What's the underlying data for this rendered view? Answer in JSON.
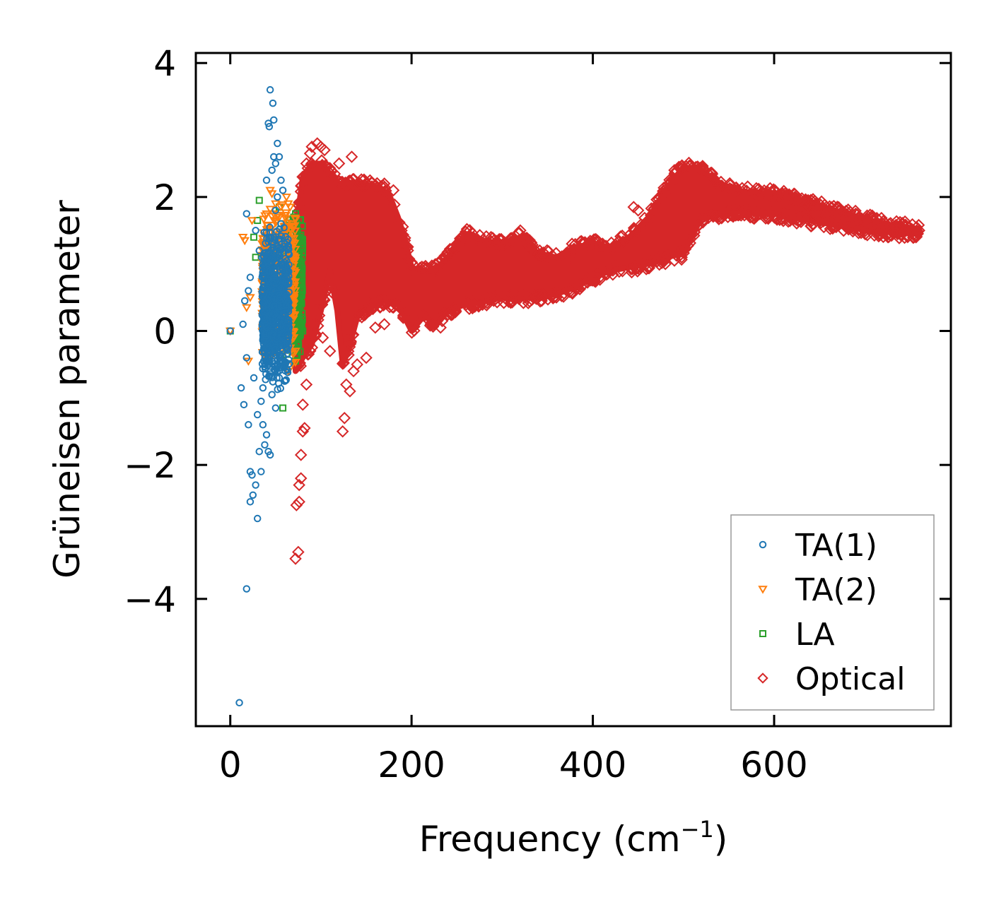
{
  "chart_data": {
    "type": "scatter",
    "title": "",
    "xlabel": "Frequency (cm",
    "xlabel_sup": "−1",
    "xlabel_close": ")",
    "ylabel": "Grüneisen parameter",
    "xlim": [
      -38,
      795
    ],
    "ylim": [
      -5.9,
      4.15
    ],
    "x_ticks": [
      0,
      200,
      400,
      600
    ],
    "x_tick_labels": [
      "0",
      "200",
      "400",
      "600"
    ],
    "y_ticks": [
      -4,
      -2,
      0,
      2,
      4
    ],
    "y_tick_labels": [
      "−4",
      "−2",
      "0",
      "2",
      "4"
    ],
    "grid": false,
    "legend_position": "lower-right",
    "series": [
      {
        "name": "TA(1)",
        "marker": "circle",
        "color": "#1f77b4",
        "points": [
          [
            0,
            0
          ],
          [
            10,
            -5.55
          ],
          [
            12,
            -0.85
          ],
          [
            14,
            0.1
          ],
          [
            15,
            -1.1
          ],
          [
            18,
            1.75
          ],
          [
            18,
            -3.85
          ],
          [
            20,
            -1.4
          ],
          [
            22,
            -2.1
          ],
          [
            22,
            -2.55
          ],
          [
            24,
            -2.15
          ],
          [
            25,
            -2.45
          ],
          [
            28,
            -2.3
          ],
          [
            30,
            -2.8
          ],
          [
            32,
            -1.8
          ],
          [
            34,
            -2.1
          ],
          [
            36,
            -1.4
          ],
          [
            38,
            -1.7
          ],
          [
            40,
            -1.55
          ],
          [
            42,
            -1.8
          ],
          [
            44,
            -1.85
          ],
          [
            42,
            3.1
          ],
          [
            43,
            3.05
          ],
          [
            44,
            3.6
          ],
          [
            47,
            3.4
          ],
          [
            48,
            3.15
          ],
          [
            48,
            2.6
          ],
          [
            50,
            2.5
          ],
          [
            52,
            2.8
          ],
          [
            54,
            2.6
          ],
          [
            56,
            2.25
          ],
          [
            58,
            2.1
          ],
          [
            50,
            1.8
          ],
          [
            44,
            1.4
          ],
          [
            40,
            0.9
          ],
          [
            22,
            0.8
          ],
          [
            20,
            0.6
          ],
          [
            16,
            0.45
          ],
          [
            18,
            -0.4
          ],
          [
            26,
            -0.7
          ],
          [
            30,
            -1.25
          ],
          [
            34,
            -1.05
          ],
          [
            36,
            -0.85
          ],
          [
            46,
            -0.95
          ],
          [
            50,
            -1.15
          ],
          [
            54,
            -0.7
          ],
          [
            60,
            -0.75
          ],
          [
            28,
            1.5
          ],
          [
            32,
            1.2
          ],
          [
            36,
            1.0
          ],
          [
            40,
            2.25
          ],
          [
            46,
            2.4
          ],
          [
            52,
            2.0
          ],
          [
            56,
            1.6
          ],
          [
            60,
            1.3
          ],
          [
            62,
            0.8
          ]
        ],
        "cluster": {
          "x_range": [
            35,
            65
          ],
          "y_range": [
            -0.9,
            1.6
          ],
          "count": 700
        }
      },
      {
        "name": "TA(2)",
        "marker": "triangle-down",
        "color": "#ff7f0e",
        "points": [
          [
            0,
            0
          ],
          [
            14,
            1.4
          ],
          [
            16,
            1.35
          ],
          [
            18,
            0.35
          ],
          [
            20,
            -0.45
          ],
          [
            22,
            0.5
          ],
          [
            24,
            1.65
          ],
          [
            40,
            1.75
          ],
          [
            44,
            2.1
          ],
          [
            46,
            2.05
          ],
          [
            48,
            1.75
          ],
          [
            50,
            1.9
          ],
          [
            54,
            1.7
          ],
          [
            58,
            1.45
          ],
          [
            62,
            2.0
          ],
          [
            64,
            1.9
          ],
          [
            66,
            1.85
          ],
          [
            68,
            1.6
          ],
          [
            70,
            -0.1
          ],
          [
            72,
            -0.3
          ],
          [
            64,
            -0.6
          ],
          [
            60,
            0.5
          ],
          [
            56,
            0.2
          ]
        ],
        "cluster": {
          "x_range": [
            35,
            72
          ],
          "y_range": [
            -0.6,
            2.0
          ],
          "count": 500
        }
      },
      {
        "name": "LA",
        "marker": "square",
        "color": "#2ca02c",
        "points": [
          [
            0,
            0
          ],
          [
            26,
            1.4
          ],
          [
            28,
            1.1
          ],
          [
            30,
            1.65
          ],
          [
            32,
            1.95
          ],
          [
            54,
            1.85
          ],
          [
            56,
            1.6
          ],
          [
            58,
            -1.15
          ],
          [
            60,
            1.45
          ],
          [
            64,
            1.5
          ],
          [
            70,
            1.7
          ],
          [
            72,
            1.75
          ],
          [
            74,
            1.5
          ],
          [
            76,
            1.4
          ],
          [
            74,
            0.6
          ],
          [
            76,
            0.0
          ],
          [
            72,
            -0.45
          ],
          [
            70,
            -0.1
          ]
        ],
        "cluster": {
          "x_range": [
            60,
            80
          ],
          "y_range": [
            -0.5,
            1.8
          ],
          "count": 350
        }
      },
      {
        "name": "Optical",
        "marker": "diamond",
        "color": "#d62728",
        "points": [
          [
            72,
            -3.4
          ],
          [
            75,
            -3.3
          ],
          [
            73,
            -2.6
          ],
          [
            76,
            -2.55
          ],
          [
            76,
            -2.3
          ],
          [
            78,
            -2.2
          ],
          [
            78,
            -1.85
          ],
          [
            80,
            -1.5
          ],
          [
            82,
            -1.45
          ],
          [
            80,
            -1.1
          ],
          [
            84,
            -0.8
          ],
          [
            84,
            2.5
          ],
          [
            88,
            2.65
          ],
          [
            90,
            2.75
          ],
          [
            96,
            2.8
          ],
          [
            100,
            2.75
          ],
          [
            104,
            2.7
          ],
          [
            120,
            2.5
          ],
          [
            134,
            2.6
          ],
          [
            150,
            2.2
          ],
          [
            170,
            2.2
          ],
          [
            180,
            2.1
          ],
          [
            124,
            -1.5
          ],
          [
            126,
            -1.3
          ],
          [
            128,
            -0.8
          ],
          [
            132,
            -0.9
          ],
          [
            136,
            -0.6
          ],
          [
            140,
            -0.5
          ],
          [
            150,
            -0.4
          ],
          [
            160,
            0.05
          ],
          [
            170,
            0.1
          ],
          [
            180,
            0.35
          ],
          [
            110,
            -0.3
          ],
          [
            102,
            -0.1
          ],
          [
            232,
            0.05
          ],
          [
            250,
            1.3
          ],
          [
            320,
            1.5
          ],
          [
            375,
            1.1
          ],
          [
            420,
            1.05
          ],
          [
            445,
            1.85
          ],
          [
            450,
            1.8
          ],
          [
            480,
            1.0
          ],
          [
            490,
            1.05
          ],
          [
            498,
            1.1
          ],
          [
            490,
            2.4
          ],
          [
            495,
            2.45
          ],
          [
            500,
            2.45
          ],
          [
            690,
            1.75
          ],
          [
            720,
            1.6
          ],
          [
            740,
            1.55
          ],
          [
            752,
            1.52
          ],
          [
            760,
            1.5
          ]
        ],
        "band_upper": [
          [
            72,
            1.5
          ],
          [
            80,
            2.3
          ],
          [
            90,
            2.5
          ],
          [
            100,
            2.5
          ],
          [
            110,
            2.35
          ],
          [
            120,
            2.2
          ],
          [
            130,
            2.2
          ],
          [
            140,
            2.2
          ],
          [
            160,
            2.15
          ],
          [
            175,
            2.05
          ],
          [
            185,
            1.7
          ],
          [
            192,
            1.4
          ],
          [
            200,
            0.95
          ],
          [
            210,
            0.9
          ],
          [
            225,
            0.9
          ],
          [
            240,
            1.1
          ],
          [
            260,
            1.45
          ],
          [
            280,
            1.35
          ],
          [
            300,
            1.3
          ],
          [
            320,
            1.4
          ],
          [
            340,
            1.15
          ],
          [
            360,
            1.1
          ],
          [
            380,
            1.25
          ],
          [
            400,
            1.3
          ],
          [
            420,
            1.25
          ],
          [
            440,
            1.4
          ],
          [
            460,
            1.65
          ],
          [
            480,
            2.1
          ],
          [
            500,
            2.45
          ],
          [
            520,
            2.4
          ],
          [
            540,
            2.2
          ],
          [
            560,
            2.1
          ],
          [
            580,
            2.05
          ],
          [
            600,
            2.05
          ],
          [
            640,
            1.9
          ],
          [
            680,
            1.75
          ],
          [
            720,
            1.6
          ],
          [
            760,
            1.52
          ]
        ],
        "band_lower": [
          [
            72,
            -0.6
          ],
          [
            80,
            -0.4
          ],
          [
            90,
            -0.2
          ],
          [
            100,
            0.3
          ],
          [
            110,
            0.9
          ],
          [
            118,
            0.3
          ],
          [
            124,
            -0.5
          ],
          [
            130,
            -0.3
          ],
          [
            140,
            0.2
          ],
          [
            155,
            0.4
          ],
          [
            170,
            0.45
          ],
          [
            185,
            0.4
          ],
          [
            200,
            0.0
          ],
          [
            215,
            0.25
          ],
          [
            225,
            0.05
          ],
          [
            240,
            0.3
          ],
          [
            260,
            0.4
          ],
          [
            280,
            0.45
          ],
          [
            300,
            0.5
          ],
          [
            320,
            0.5
          ],
          [
            340,
            0.5
          ],
          [
            360,
            0.55
          ],
          [
            380,
            0.65
          ],
          [
            400,
            0.8
          ],
          [
            420,
            0.9
          ],
          [
            440,
            0.95
          ],
          [
            460,
            1.0
          ],
          [
            480,
            1.1
          ],
          [
            500,
            1.15
          ],
          [
            520,
            1.7
          ],
          [
            540,
            1.75
          ],
          [
            560,
            1.8
          ],
          [
            580,
            1.75
          ],
          [
            600,
            1.75
          ],
          [
            640,
            1.65
          ],
          [
            680,
            1.55
          ],
          [
            720,
            1.48
          ],
          [
            760,
            1.45
          ]
        ]
      }
    ]
  }
}
